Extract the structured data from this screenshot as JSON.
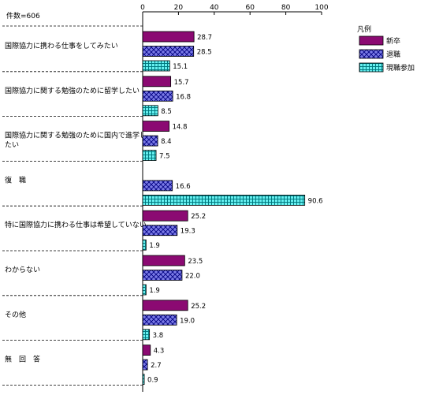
{
  "chart_data": {
    "type": "bar",
    "orientation": "horizontal",
    "n_label": "件数=606",
    "xlim": [
      0,
      100
    ],
    "ticks": [
      0,
      20,
      40,
      60,
      80,
      100
    ],
    "categories": [
      "国際協力に携わる仕事をしてみたい",
      "国際協力に関する勉強のために留学したい",
      "国際協力に関する勉強のために国内で進学したい",
      "復　職",
      "特に国際協力に携わる仕事は希望していない",
      "わからない",
      "その他",
      "無　回　答"
    ],
    "series": [
      {
        "name": "新卒",
        "color": "#8B0A72",
        "pattern": "solid",
        "values": [
          28.7,
          15.7,
          14.8,
          null,
          25.2,
          23.5,
          25.2,
          4.3
        ],
        "labels": [
          "28.7",
          "15.7",
          "14.8",
          "",
          "25.2",
          "23.5",
          "25.2",
          "4.3"
        ]
      },
      {
        "name": "退職",
        "color": "#7A7AE6",
        "pattern": "crosshatch",
        "values": [
          28.5,
          16.8,
          8.4,
          16.6,
          19.3,
          22.0,
          19.0,
          2.7
        ],
        "labels": [
          "28.5",
          "16.8",
          "8.4",
          "16.6",
          "19.3",
          "22.0",
          "19.0",
          "2.7"
        ]
      },
      {
        "name": "現職参加",
        "color": "#66F0F0",
        "pattern": "grid",
        "values": [
          15.1,
          8.5,
          7.5,
          90.6,
          1.9,
          1.9,
          3.8,
          0.9
        ],
        "labels": [
          "15.1",
          "8.5",
          "7.5",
          "90.6",
          "1.9",
          "1.9",
          "3.8",
          "0.9"
        ]
      }
    ],
    "legend": {
      "title": "凡例",
      "position": "top-right"
    },
    "grid": false
  }
}
